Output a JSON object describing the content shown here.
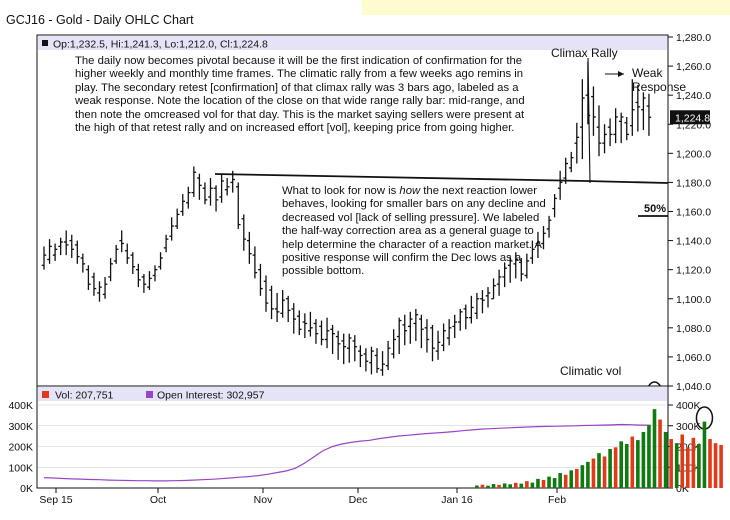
{
  "window": {
    "title": "GCJ16 - Gold - Daily OHLC Chart"
  },
  "header": {
    "info_text": "Op:1,232.5, Hi:1,241.3, Lo:1,212.0, Cl:1,224.8"
  },
  "notes": {
    "main": "The daily now becomes pivotal because it will be the first indication of confirmation for the higher weekly and monthly time frames.  The climatic rally from a few weeks ago remins in play.  The secondary retest [confirmation] of that climax rally was 3 bars ago, labeled as a weak response.  Note the location of the close on that wide range rally bar:  mid-range, and then note the omcreased vol for that day.  This is the market saying sellers were present at the high of that retest rally and on increased effort [vol], keeping price from going higher.",
    "second_pre": "What to look for now is ",
    "second_italic": "how",
    "second_post": " the next reaction lower behaves, looking for smaller bars on any decline and decreased vol [lack of selling pressure].  We labeled the half-way correction area as a general guage to help determine the character of a reaction market.  A positive response will confirm the Dec lows as a possible bottom."
  },
  "labels": {
    "climax_rally": "Climax Rally",
    "weak_response": "Weak\nResponse",
    "fifty_pct": "50%",
    "climatic_vol": "Climatic vol"
  },
  "lower_legend": {
    "vol": "Vol: 207,751",
    "oi": "Open Interest: 302,957"
  },
  "current_price_label": "1,224.8",
  "colors": {
    "price_bar": "#111111",
    "vol_up": "#0f7a0f",
    "vol_down": "#e03a1a",
    "open_interest": "#9a45c8",
    "header_bg": "#e4e4f6",
    "banner": "#fdfccf",
    "grid": "#c9c9c9"
  },
  "chart_data": [
    {
      "type": "ohlc",
      "title": "GCJ16 - Gold - Daily OHLC Chart",
      "x_ticks": [
        "Sep 15",
        "Oct",
        "Nov",
        "Dec",
        "Jan 16",
        "Feb"
      ],
      "y_ticks": [
        "1,040.0",
        "1,060.0",
        "1,080.0",
        "1,100.0",
        "1,120.0",
        "1,140.0",
        "1,160.0",
        "1,180.0",
        "1,200.0",
        "1,220.0",
        "1,240.0",
        "1,260.0",
        "1,280.0"
      ],
      "ylim": [
        1040,
        1280
      ],
      "grid": false,
      "last_bar": {
        "open": 1232.5,
        "high": 1241.3,
        "low": 1212.0,
        "close": 1224.8
      },
      "highs": [
        1136,
        1141,
        1138,
        1142,
        1147,
        1144,
        1140,
        1131,
        1123,
        1118,
        1112,
        1115,
        1128,
        1137,
        1147,
        1138,
        1132,
        1124,
        1117,
        1119,
        1123,
        1132,
        1144,
        1156,
        1162,
        1172,
        1177,
        1191,
        1186,
        1180,
        1183,
        1178,
        1186,
        1183,
        1188,
        1180,
        1158,
        1146,
        1136,
        1124,
        1116,
        1109,
        1104,
        1106,
        1102,
        1097,
        1092,
        1090,
        1091,
        1086,
        1085,
        1087,
        1082,
        1078,
        1076,
        1076,
        1075,
        1068,
        1066,
        1067,
        1066,
        1064,
        1071,
        1079,
        1087,
        1089,
        1091,
        1093,
        1089,
        1086,
        1082,
        1078,
        1083,
        1086,
        1089,
        1093,
        1096,
        1102,
        1104,
        1106,
        1108,
        1114,
        1120,
        1125,
        1129,
        1132,
        1128,
        1131,
        1140,
        1146,
        1150,
        1157,
        1172,
        1188,
        1197,
        1201,
        1221,
        1251,
        1263,
        1246,
        1233,
        1220,
        1224,
        1231,
        1228,
        1225,
        1251,
        1247,
        1242,
        1241
      ],
      "lows": [
        1120,
        1124,
        1126,
        1130,
        1130,
        1128,
        1124,
        1118,
        1106,
        1102,
        1098,
        1100,
        1112,
        1124,
        1132,
        1124,
        1117,
        1108,
        1104,
        1106,
        1112,
        1120,
        1132,
        1140,
        1148,
        1157,
        1162,
        1170,
        1168,
        1165,
        1164,
        1160,
        1166,
        1171,
        1173,
        1148,
        1133,
        1124,
        1114,
        1102,
        1091,
        1086,
        1084,
        1087,
        1084,
        1076,
        1075,
        1073,
        1074,
        1069,
        1068,
        1066,
        1062,
        1058,
        1055,
        1056,
        1057,
        1053,
        1050,
        1048,
        1049,
        1047,
        1051,
        1059,
        1062,
        1068,
        1069,
        1071,
        1066,
        1063,
        1057,
        1058,
        1064,
        1068,
        1073,
        1078,
        1079,
        1083,
        1086,
        1090,
        1094,
        1100,
        1102,
        1108,
        1111,
        1114,
        1112,
        1114,
        1124,
        1128,
        1134,
        1142,
        1156,
        1168,
        1179,
        1187,
        1193,
        1196,
        1220,
        1212,
        1198,
        1200,
        1205,
        1207,
        1207,
        1209,
        1212,
        1215,
        1216,
        1212
      ],
      "opens": [
        1123,
        1127,
        1130,
        1136,
        1139,
        1140,
        1137,
        1128,
        1120,
        1115,
        1104,
        1103,
        1115,
        1126,
        1140,
        1133,
        1130,
        1120,
        1115,
        1108,
        1116,
        1122,
        1135,
        1143,
        1150,
        1160,
        1166,
        1173,
        1183,
        1176,
        1170,
        1176,
        1170,
        1175,
        1180,
        1177,
        1155,
        1140,
        1130,
        1120,
        1112,
        1106,
        1093,
        1090,
        1100,
        1093,
        1088,
        1084,
        1078,
        1083,
        1081,
        1072,
        1079,
        1074,
        1071,
        1066,
        1071,
        1064,
        1062,
        1056,
        1061,
        1051,
        1054,
        1062,
        1074,
        1082,
        1081,
        1083,
        1086,
        1080,
        1080,
        1064,
        1068,
        1073,
        1081,
        1084,
        1093,
        1087,
        1090,
        1100,
        1102,
        1100,
        1110,
        1115,
        1123,
        1124,
        1125,
        1116,
        1128,
        1138,
        1138,
        1148,
        1162,
        1176,
        1183,
        1190,
        1207,
        1218,
        1240,
        1239,
        1218,
        1207,
        1218,
        1213,
        1222,
        1221,
        1219,
        1235,
        1230,
        1232.5
      ],
      "closes": [
        1130,
        1136,
        1134,
        1139,
        1137,
        1134,
        1129,
        1124,
        1110,
        1107,
        1108,
        1110,
        1124,
        1134,
        1138,
        1128,
        1122,
        1113,
        1110,
        1114,
        1120,
        1128,
        1141,
        1150,
        1158,
        1167,
        1173,
        1187,
        1178,
        1168,
        1176,
        1168,
        1181,
        1177,
        1182,
        1151,
        1141,
        1131,
        1118,
        1107,
        1097,
        1093,
        1091,
        1099,
        1092,
        1086,
        1079,
        1083,
        1080,
        1076,
        1072,
        1078,
        1076,
        1069,
        1067,
        1073,
        1067,
        1061,
        1057,
        1064,
        1052,
        1055,
        1066,
        1072,
        1085,
        1078,
        1086,
        1089,
        1079,
        1072,
        1066,
        1070,
        1078,
        1080,
        1084,
        1091,
        1087,
        1094,
        1100,
        1099,
        1104,
        1109,
        1115,
        1121,
        1126,
        1127,
        1117,
        1126,
        1134,
        1139,
        1145,
        1154,
        1169,
        1180,
        1193,
        1197,
        1211,
        1238,
        1226,
        1225,
        1207,
        1213,
        1213,
        1225,
        1225,
        1213,
        1230,
        1232,
        1238,
        1224.8
      ]
    },
    {
      "type": "bar",
      "title": "Vol: 207,751 / Open Interest: 302,957",
      "y_ticks": [
        "0K",
        "100K",
        "200K",
        "300K",
        "400K"
      ],
      "ylim": [
        0,
        400000
      ],
      "series": [
        {
          "name": "Vol",
          "x_start_bar": 78,
          "values": [
            12000,
            16000,
            11000,
            19000,
            15000,
            22000,
            18000,
            25000,
            21000,
            33000,
            26000,
            44000,
            39000,
            55000,
            48000,
            72000,
            64000,
            85000,
            92000,
            110000,
            126000,
            142000,
            168000,
            152000,
            188000,
            196000,
            225000,
            212000,
            248000,
            231000,
            270000,
            305000,
            380000,
            330000,
            270000,
            236000,
            216000,
            258000,
            196000,
            242000,
            212000,
            320000,
            236000,
            216000,
            207751
          ],
          "up": [
            1,
            0,
            1,
            1,
            0,
            1,
            1,
            0,
            1,
            0,
            1,
            1,
            0,
            1,
            1,
            1,
            0,
            1,
            0,
            1,
            1,
            0,
            1,
            0,
            1,
            0,
            1,
            1,
            0,
            1,
            1,
            1,
            1,
            0,
            1,
            0,
            1,
            0,
            0,
            0,
            1,
            1,
            0,
            0,
            0
          ]
        },
        {
          "name": "Open Interest",
          "type": "line",
          "x_start_bar": 0,
          "values": [
            50000,
            48000,
            46000,
            44000,
            43000,
            41000,
            40000,
            38000,
            37000,
            36000,
            35000,
            35000,
            34000,
            34000,
            35000,
            36000,
            38000,
            40000,
            42000,
            45000,
            48000,
            52000,
            55000,
            60000,
            66000,
            74000,
            82000,
            95000,
            120000,
            150000,
            180000,
            200000,
            212000,
            220000,
            226000,
            230000,
            238000,
            244000,
            250000,
            254000,
            258000,
            262000,
            265000,
            268000,
            272000,
            276000,
            280000,
            284000,
            286000,
            288000,
            290000,
            292000,
            294000,
            296000,
            297000,
            298000,
            299000,
            300000,
            301000,
            302000,
            303000,
            304000,
            306000,
            305000,
            303000,
            302957
          ]
        }
      ]
    }
  ]
}
